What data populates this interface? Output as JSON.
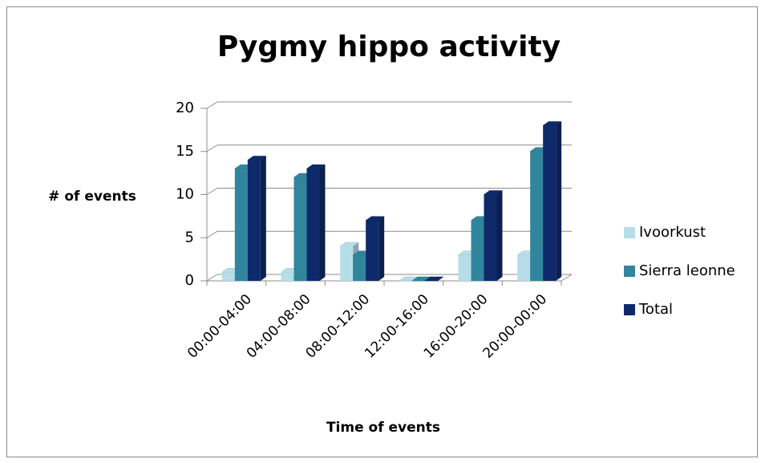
{
  "chart_data": {
    "type": "bar",
    "title": "Pygmy hippo activity",
    "x_label": "Time of events",
    "y_label": "# of events",
    "categories": [
      "00:00-04:00",
      "04:00-08:00",
      "08:00-12:00",
      "12:00-16:00",
      "16:00-20:00",
      "20:00-00:00"
    ],
    "series": [
      {
        "name": "Ivoorkust",
        "color": "#b7dde8",
        "values": [
          1,
          1,
          4,
          0,
          3,
          3
        ]
      },
      {
        "name": "Sierra leonne",
        "color": "#31859c",
        "values": [
          13,
          12,
          3,
          0,
          7,
          15
        ]
      },
      {
        "name": "Total",
        "color": "#0f2a6b",
        "values": [
          14,
          13,
          7,
          0,
          10,
          18
        ]
      }
    ],
    "ylim": [
      0,
      20
    ],
    "yticks": [
      0,
      5,
      10,
      15,
      20
    ],
    "grid": true,
    "legend": "right"
  }
}
